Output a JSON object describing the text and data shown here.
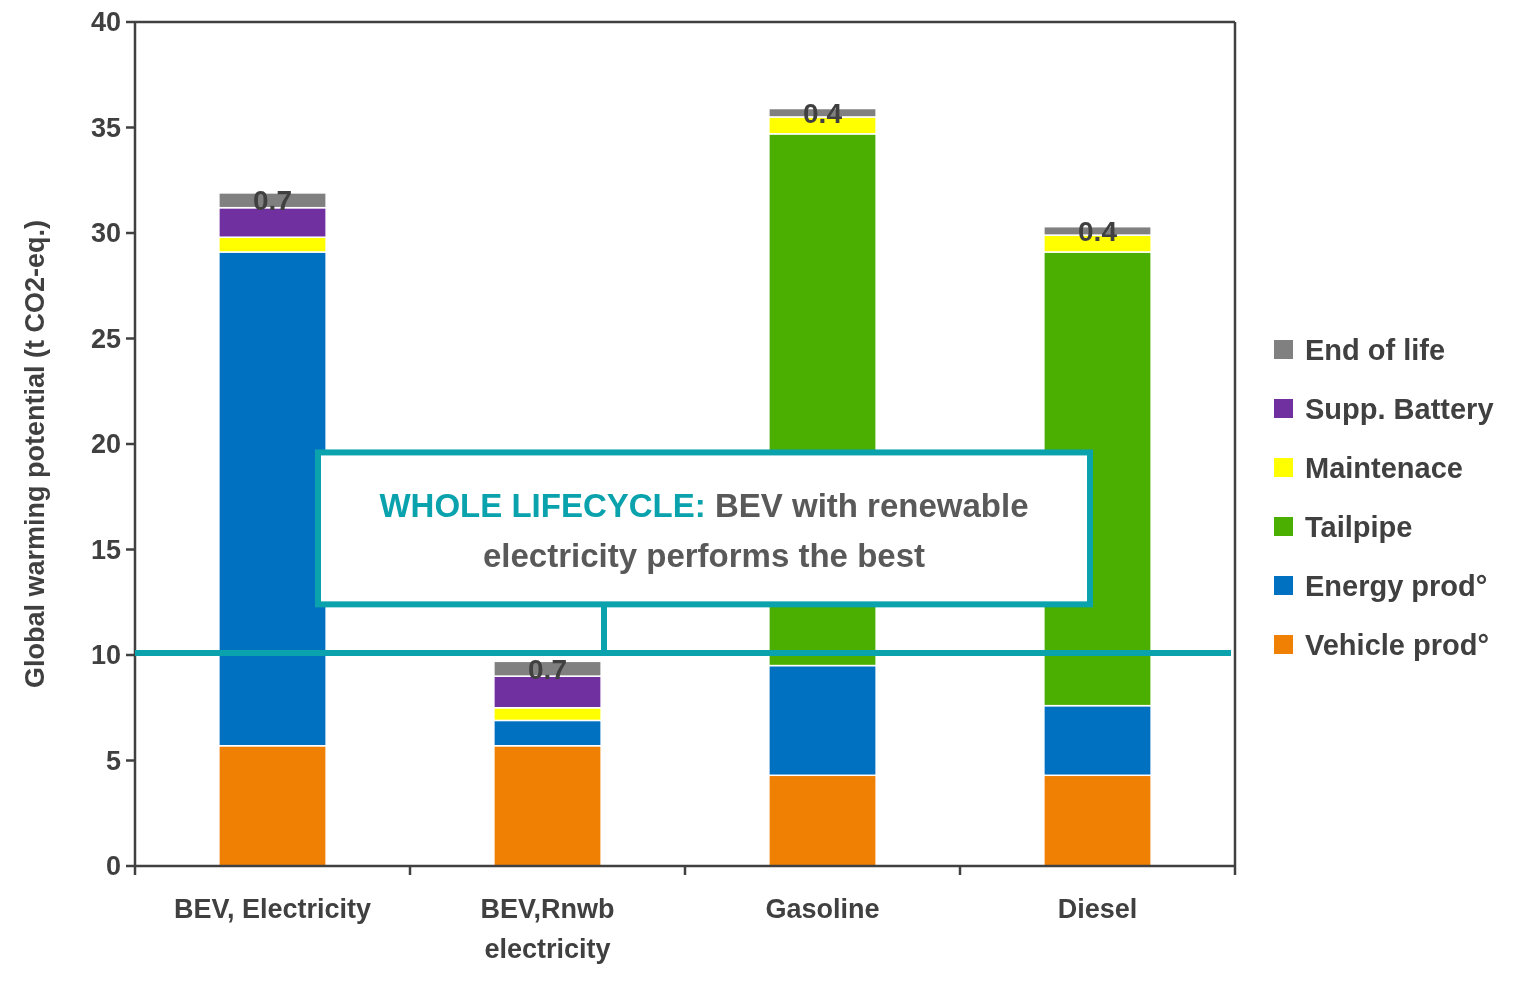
{
  "chart_data": {
    "type": "bar",
    "stacked": true,
    "ylabel": "Global warming potential (t CO2-eq.)",
    "categories": [
      "BEV, Electricity",
      "BEV,Rnwb electricity",
      "Gasoline",
      "Diesel"
    ],
    "series": [
      {
        "name": "Vehicle prod°",
        "color": "#f08004",
        "values": [
          5.7,
          5.7,
          4.3,
          4.3
        ]
      },
      {
        "name": "Energy prod°",
        "color": "#0070c0",
        "values": [
          23.4,
          1.2,
          5.2,
          3.3
        ]
      },
      {
        "name": "Tailpipe",
        "color": "#4aaf00",
        "values": [
          0,
          0,
          25.2,
          21.5
        ]
      },
      {
        "name": "Maintenace",
        "color": "#ffff00",
        "values": [
          0.7,
          0.6,
          0.8,
          0.8
        ]
      },
      {
        "name": "Supp. Battery",
        "color": "#7030a0",
        "values": [
          1.4,
          1.5,
          0,
          0
        ]
      },
      {
        "name": "End of life",
        "color": "#808080",
        "values": [
          0.7,
          0.7,
          0.4,
          0.4
        ],
        "value_labels": [
          "0.7",
          "0.7",
          "0.4",
          "0.4"
        ]
      }
    ],
    "ylim": [
      0,
      40
    ],
    "yticks": [
      0,
      5,
      10,
      15,
      20,
      25,
      30,
      35,
      40
    ],
    "grid": false,
    "legend": "right",
    "ref_lines": [
      {
        "axis": "y",
        "value": 10.1,
        "color": "#0aa3ad"
      }
    ],
    "annotations": [
      "WHOLE LIFECYCLE:",
      "BEV with renewable electricity performs the best"
    ]
  }
}
